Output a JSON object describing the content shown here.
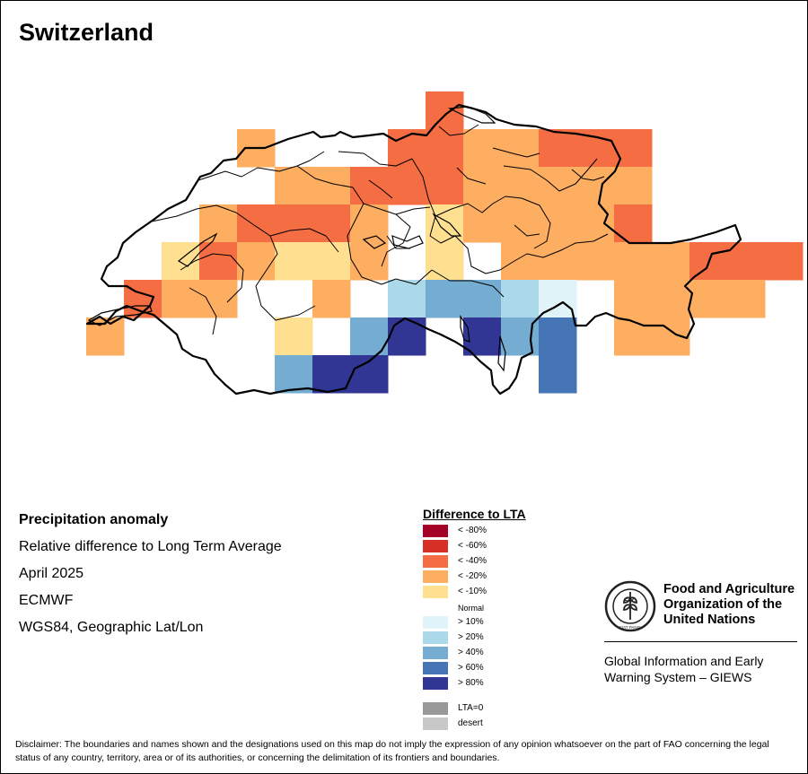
{
  "title": "Switzerland",
  "info": {
    "line1": "Precipitation anomaly",
    "line2": "Relative difference to Long Term Average",
    "line3": "April 2025",
    "line4": "ECMWF",
    "line5": "WGS84, Geographic Lat/Lon"
  },
  "legend": {
    "title": "Difference to LTA",
    "items": [
      {
        "label": "< -80%",
        "color": "#a50026"
      },
      {
        "label": "< -60%",
        "color": "#d73027"
      },
      {
        "label": "< -40%",
        "color": "#f46d43"
      },
      {
        "label": "< -20%",
        "color": "#fdae61"
      },
      {
        "label": "< -10%",
        "color": "#fee090"
      },
      {
        "label": "Normal",
        "color": "#ffffff"
      },
      {
        "label": "> 10%",
        "color": "#e0f3f8"
      },
      {
        "label": "> 20%",
        "color": "#abd9e9"
      },
      {
        "label": "> 40%",
        "color": "#74add1"
      },
      {
        "label": "> 60%",
        "color": "#4575b4"
      },
      {
        "label": "> 80%",
        "color": "#313695"
      }
    ],
    "extra": [
      {
        "label": "LTA=0",
        "color": "#999999"
      },
      {
        "label": "desert",
        "color": "#c8c8c8"
      }
    ]
  },
  "fao": {
    "name": "Food and Agriculture\nOrganization of the\nUnited Nations",
    "logo_text": "FAO",
    "motto": "FIAT PANIS",
    "giews": "Global Information and Early\nWarning System – GIEWS"
  },
  "disclaimer": "Disclaimer: The boundaries and names shown and the designations used on this map do not imply the expression of any opinion whatsoever on the part of FAO concerning the legal status of any country, territory, area or of its authorities, or concerning the delimitation of its frontiers and boundaries.",
  "map": {
    "color_key": {
      "d40": "#f46d43",
      "d20": "#fdae61",
      "d10": "#fee090",
      "w10": "#e0f3f8",
      "w20": "#abd9e9",
      "w40": "#74add1",
      "w60": "#4575b4",
      "w80": "#313695"
    },
    "grid_rows": [
      {
        "row": 0,
        "cells": [
          [
            7,
            "d40"
          ]
        ]
      },
      {
        "row": 1,
        "cells": [
          [
            2,
            "d20"
          ],
          [
            6,
            "d40"
          ],
          [
            7,
            "d40"
          ],
          [
            8,
            "d20"
          ],
          [
            9,
            "d20"
          ],
          [
            10,
            "d40"
          ],
          [
            11,
            "d40"
          ],
          [
            12,
            "d40"
          ]
        ]
      },
      {
        "row": 2,
        "cells": [
          [
            3,
            "d20"
          ],
          [
            4,
            "d20"
          ],
          [
            5,
            "d40"
          ],
          [
            6,
            "d40"
          ],
          [
            7,
            "d40"
          ],
          [
            8,
            "d20"
          ],
          [
            9,
            "d20"
          ],
          [
            10,
            "d20"
          ],
          [
            11,
            "d20"
          ],
          [
            12,
            "d20"
          ]
        ]
      },
      {
        "row": 3,
        "cells": [
          [
            1,
            "d20"
          ],
          [
            2,
            "d40"
          ],
          [
            3,
            "d40"
          ],
          [
            4,
            "d40"
          ],
          [
            5,
            "d20"
          ],
          [
            7,
            "d10"
          ],
          [
            8,
            "d20"
          ],
          [
            9,
            "d20"
          ],
          [
            10,
            "d20"
          ],
          [
            11,
            "d20"
          ],
          [
            12,
            "d40"
          ]
        ]
      },
      {
        "row": 4,
        "cells": [
          [
            0,
            "d10"
          ],
          [
            1,
            "d40"
          ],
          [
            2,
            "d20"
          ],
          [
            3,
            "d10"
          ],
          [
            4,
            "d10"
          ],
          [
            5,
            "d20"
          ],
          [
            7,
            "d10"
          ],
          [
            9,
            "d20"
          ],
          [
            10,
            "d20"
          ],
          [
            11,
            "d20"
          ],
          [
            12,
            "d20"
          ],
          [
            13,
            "d20"
          ],
          [
            14,
            "d40"
          ],
          [
            15,
            "d40"
          ],
          [
            16,
            "d40"
          ]
        ]
      },
      {
        "row": 5,
        "cells": [
          [
            -1,
            "d40"
          ],
          [
            0,
            "d20"
          ],
          [
            1,
            "d20"
          ],
          [
            4,
            "d20"
          ],
          [
            6,
            "w20"
          ],
          [
            7,
            "w40"
          ],
          [
            8,
            "w40"
          ],
          [
            9,
            "w20"
          ],
          [
            10,
            "w10"
          ],
          [
            12,
            "d20"
          ],
          [
            13,
            "d20"
          ],
          [
            14,
            "d20"
          ],
          [
            15,
            "d20"
          ]
        ]
      },
      {
        "row": 6,
        "cells": [
          [
            -2,
            "d20"
          ],
          [
            3,
            "d10"
          ],
          [
            5,
            "w40"
          ],
          [
            6,
            "w80"
          ],
          [
            8,
            "w80"
          ],
          [
            9,
            "w40"
          ],
          [
            10,
            "w60"
          ],
          [
            12,
            "d20"
          ],
          [
            13,
            "d20"
          ]
        ]
      },
      {
        "row": 7,
        "cells": [
          [
            3,
            "w40"
          ],
          [
            4,
            "w80"
          ],
          [
            5,
            "w80"
          ],
          [
            10,
            "w60"
          ]
        ]
      }
    ]
  }
}
